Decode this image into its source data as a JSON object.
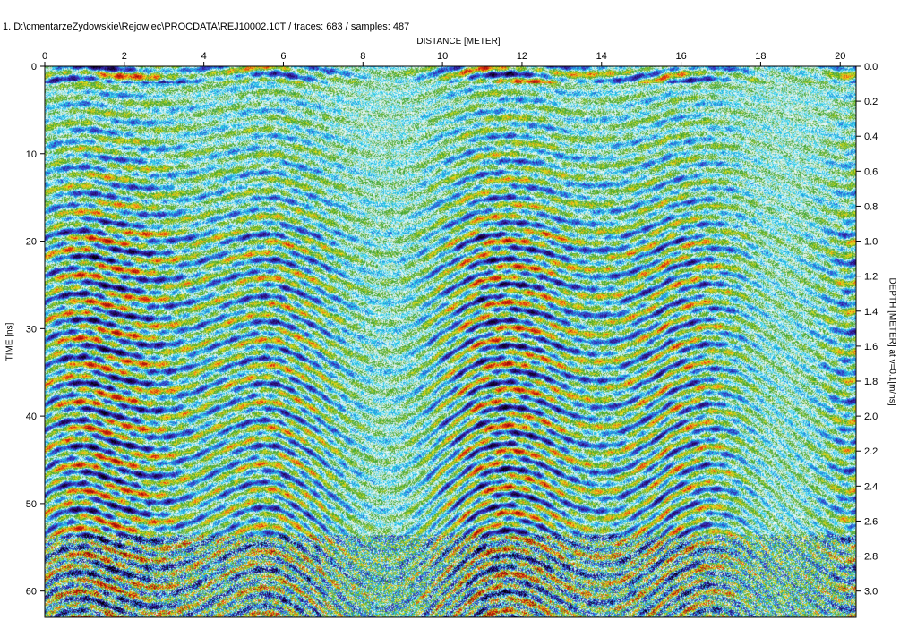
{
  "header": {
    "file_line": "1. D:\\cmentarzeZydowskie\\Rejowiec\\PROCDATA\\REJ10002.10T / traces: 683 / samples: 487"
  },
  "chart_data": {
    "type": "heatmap",
    "title": "",
    "xlabel": "DISTANCE [METER]",
    "ylabel_left": "TIME [ns]",
    "ylabel_right": "DEPTH [METER] at v=0.1[m/ns]",
    "traces": 683,
    "samples": 487,
    "xlim": [
      0,
      20.4
    ],
    "ylim_time": [
      0,
      63
    ],
    "ylim_depth": [
      0,
      3.15
    ],
    "x_ticks": [
      "0",
      "2",
      "4",
      "6",
      "8",
      "10",
      "12",
      "14",
      "16",
      "18",
      "20"
    ],
    "y_left_ticks": [
      "0",
      "10",
      "20",
      "30",
      "40",
      "50",
      "60"
    ],
    "y_right_ticks": [
      "0.0",
      "0.2",
      "0.4",
      "0.6",
      "0.8",
      "1.0",
      "1.2",
      "1.4",
      "1.6",
      "1.8",
      "2.0",
      "2.2",
      "2.4",
      "2.6",
      "2.8",
      "3.0"
    ],
    "colorscale": [
      "#000000",
      "#2a0a6e",
      "#3b3bd0",
      "#18c8e6",
      "#ffffff",
      "#2e9e2e",
      "#f0e61e",
      "#e83010",
      "#8a0a0a"
    ],
    "grid": false,
    "legend": "none"
  }
}
